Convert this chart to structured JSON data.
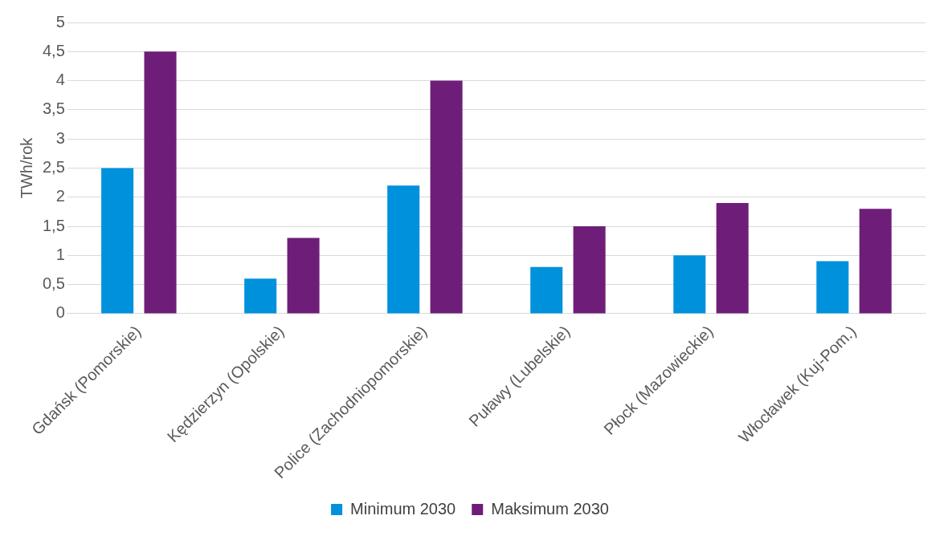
{
  "chart_data": {
    "type": "bar",
    "ylabel": "TWh/rok",
    "categories": [
      "Gdańsk (Pomorskie)",
      "Kędzierzyn (Opolskie)",
      "Police (Zachodniopomorskie)",
      "Puławy (Lubelskie)",
      "Płock (Mazowieckie)",
      "Włocławek (Kuj-Pom.)"
    ],
    "series": [
      {
        "name": "Minimum 2030",
        "color": "#0091dc",
        "values": [
          2.5,
          0.6,
          2.2,
          0.8,
          1.0,
          0.9
        ]
      },
      {
        "name": "Maksimum 2030",
        "color": "#6e1e78",
        "values": [
          4.5,
          1.3,
          4.0,
          1.5,
          1.9,
          1.8
        ]
      }
    ],
    "ylim": [
      0,
      5
    ],
    "yticks": [
      0,
      {
        "value": 0.5,
        "label": "0,5"
      },
      1,
      {
        "value": 1.5,
        "label": "1,5"
      },
      2,
      {
        "value": 2.5,
        "label": "2,5"
      },
      3,
      {
        "value": 3.5,
        "label": "3,5"
      },
      4,
      {
        "value": 4.5,
        "label": "4,5"
      },
      5
    ],
    "grid": "y",
    "legend": "bottom"
  }
}
